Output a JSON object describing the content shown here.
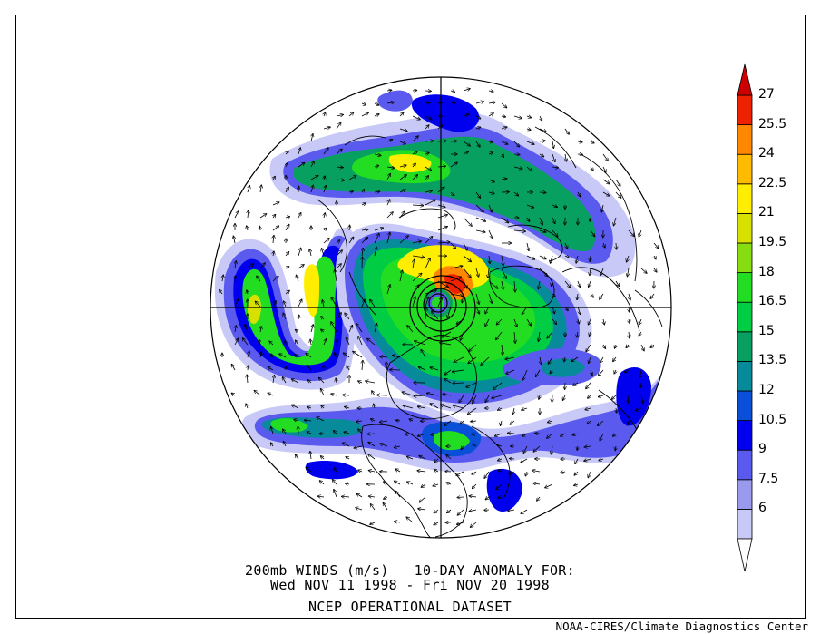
{
  "title": {
    "line1": "200mb WINDS (m/s)   10-DAY ANOMALY FOR:",
    "line2": "Wed NOV 11 1998 - Fri NOV 20 1998",
    "line3": "NCEP OPERATIONAL DATASET"
  },
  "credit": "NOAA-CIRES/Climate Diagnostics Center",
  "colorbar": {
    "levels": [
      {
        "label": "6",
        "color": "#c9c9f7"
      },
      {
        "label": "7.5",
        "color": "#9999ee"
      },
      {
        "label": "9",
        "color": "#5a5aee"
      },
      {
        "label": "10.5",
        "color": "#0000ee"
      },
      {
        "label": "12",
        "color": "#0a4fd8"
      },
      {
        "label": "13.5",
        "color": "#078a9a"
      },
      {
        "label": "15",
        "color": "#08a060"
      },
      {
        "label": "16.5",
        "color": "#00cc44"
      },
      {
        "label": "18",
        "color": "#22dd22"
      },
      {
        "label": "19.5",
        "color": "#88dd11"
      },
      {
        "label": "21",
        "color": "#d8e000"
      },
      {
        "label": "22.5",
        "color": "#ffee00"
      },
      {
        "label": "24",
        "color": "#ffbb00"
      },
      {
        "label": "25.5",
        "color": "#ff8800"
      },
      {
        "label": "27",
        "color": "#ee2200"
      }
    ],
    "top_color": "#cc0000"
  },
  "map": {
    "projection": "north-polar-stereographic",
    "gridlines": "cross at pole"
  }
}
